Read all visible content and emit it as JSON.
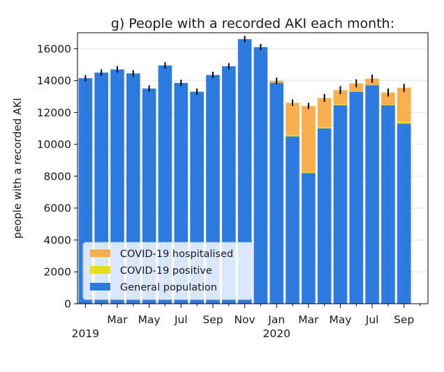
{
  "chart_data": {
    "type": "bar",
    "stacked": true,
    "title": "g) People with a recorded AKI each month:",
    "xlabel": "",
    "ylabel": "people with a recorded AKI",
    "ylim": [
      0,
      17000
    ],
    "yticks": [
      0,
      2000,
      4000,
      6000,
      8000,
      10000,
      12000,
      14000,
      16000
    ],
    "ytick_labels": [
      "0",
      "2000",
      "4000",
      "6000",
      "8000",
      "10000",
      "12000",
      "14000",
      "16000"
    ],
    "grid": true,
    "legend_position": "lower-left",
    "categories": [
      "2019-01",
      "2019-02",
      "2019-03",
      "2019-04",
      "2019-05",
      "2019-06",
      "2019-07",
      "2019-08",
      "2019-09",
      "2019-10",
      "2019-11",
      "2019-12",
      "2020-01",
      "2020-02",
      "2020-03",
      "2020-04",
      "2020-05",
      "2020-06",
      "2020-07",
      "2020-08",
      "2020-09",
      "2020-10"
    ],
    "xtick_labels": [
      {
        "index": 0,
        "label": "",
        "year": "2019"
      },
      {
        "index": 2,
        "label": "Mar"
      },
      {
        "index": 4,
        "label": "May"
      },
      {
        "index": 6,
        "label": "Jul"
      },
      {
        "index": 8,
        "label": "Sep"
      },
      {
        "index": 10,
        "label": "Nov"
      },
      {
        "index": 12,
        "label": "Jan",
        "year": "2020"
      },
      {
        "index": 14,
        "label": "Mar"
      },
      {
        "index": 16,
        "label": "May"
      },
      {
        "index": 18,
        "label": "Jul"
      },
      {
        "index": 20,
        "label": "Sep"
      }
    ],
    "series": [
      {
        "name": "General population",
        "color": "#2e7be0",
        "values": [
          14150,
          14500,
          14700,
          14450,
          13500,
          14950,
          13850,
          13300,
          14350,
          14900,
          16600,
          16100,
          13850,
          10500,
          8200,
          11000,
          12450,
          13300,
          13700,
          12450,
          11300,
          0
        ]
      },
      {
        "name": "COVID-19 positive",
        "color": "#e3e01b",
        "values": [
          0,
          0,
          0,
          0,
          0,
          0,
          0,
          0,
          0,
          0,
          0,
          0,
          0,
          80,
          60,
          80,
          60,
          40,
          20,
          30,
          120,
          0
        ]
      },
      {
        "name": "COVID-19 hospitalised",
        "color": "#f9ae4f",
        "values": [
          0,
          0,
          0,
          0,
          0,
          0,
          0,
          0,
          0,
          0,
          0,
          0,
          130,
          2030,
          4150,
          1830,
          890,
          490,
          400,
          770,
          2130,
          0
        ]
      }
    ],
    "error_bars": [
      200,
      200,
      200,
      200,
      200,
      200,
      200,
      200,
      200,
      200,
      200,
      200,
      200,
      200,
      200,
      250,
      250,
      250,
      250,
      250,
      250,
      0
    ],
    "legend": [
      "COVID-19 hospitalised",
      "COVID-19 positive",
      "General population"
    ]
  }
}
